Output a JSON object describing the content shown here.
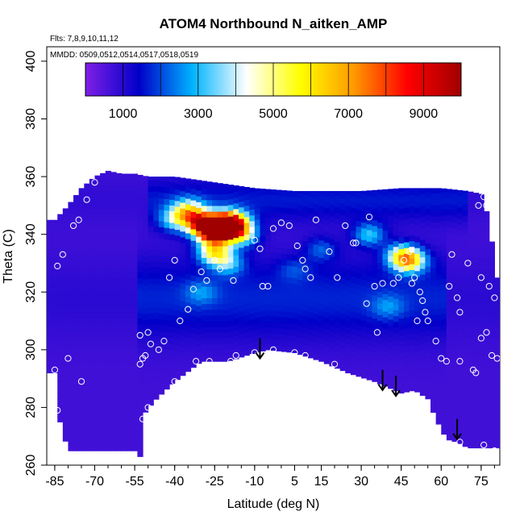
{
  "chart_data": {
    "type": "heatmap",
    "title": "ATOM4 Northbound N_aitken_AMP",
    "notes": [
      "Flts: 7,8,9,10,11,12",
      "MMDD: 0509,0512,0514,0517,0518,0519"
    ],
    "xlabel": "Latitude (deg N)",
    "ylabel": "Theta (C)",
    "xlim": [
      -88,
      82
    ],
    "ylim": [
      260,
      405
    ],
    "x_ticks": [
      -85,
      -70,
      -55,
      -40,
      -25,
      -10,
      5,
      15,
      30,
      45,
      60,
      75
    ],
    "y_ticks": [
      260,
      280,
      300,
      320,
      340,
      360,
      380,
      400
    ],
    "colorbar": {
      "range": [
        0,
        10000
      ],
      "tick_values": [
        1000,
        3000,
        5000,
        7000,
        9000
      ],
      "tick_labels": [
        "1000",
        "3000",
        "5000",
        "7000",
        "9000"
      ],
      "colors": [
        "#7f1fe6",
        "#0000c8",
        "#00b4ff",
        "#ffffff",
        "#ffff00",
        "#ff9900",
        "#ff0000",
        "#a00000"
      ]
    },
    "upper_boundary": [
      [
        -85,
        345
      ],
      [
        -80,
        350
      ],
      [
        -75,
        356
      ],
      [
        -70,
        360
      ],
      [
        -65,
        362
      ],
      [
        -60,
        361
      ],
      [
        -55,
        361
      ],
      [
        -50,
        360
      ],
      [
        -40,
        360
      ],
      [
        -25,
        358
      ],
      [
        -10,
        356
      ],
      [
        5,
        355
      ],
      [
        15,
        355
      ],
      [
        30,
        355
      ],
      [
        45,
        356
      ],
      [
        60,
        356
      ],
      [
        70,
        355
      ],
      [
        75,
        354
      ],
      [
        78,
        345
      ],
      [
        80,
        330
      ],
      [
        82,
        320
      ]
    ],
    "lower_boundary": [
      [
        -85,
        292
      ],
      [
        -83,
        275
      ],
      [
        -80,
        265
      ],
      [
        -70,
        265
      ],
      [
        -55,
        265
      ],
      [
        -53,
        263
      ],
      [
        -53,
        276
      ],
      [
        -48,
        282
      ],
      [
        -40,
        289
      ],
      [
        -30,
        296
      ],
      [
        -20,
        296
      ],
      [
        -10,
        299
      ],
      [
        -5,
        300
      ],
      [
        5,
        299
      ],
      [
        15,
        296
      ],
      [
        25,
        292
      ],
      [
        35,
        289
      ],
      [
        40,
        287
      ],
      [
        45,
        285
      ],
      [
        50,
        286
      ],
      [
        55,
        283
      ],
      [
        58,
        276
      ],
      [
        62,
        269
      ],
      [
        66,
        268
      ],
      [
        70,
        266
      ],
      [
        75,
        266
      ],
      [
        82,
        266
      ]
    ],
    "hotspots": [
      {
        "x": -25,
        "y": 341,
        "value": 9500
      },
      {
        "x": -22,
        "y": 343,
        "value": 8500
      },
      {
        "x": -30,
        "y": 344,
        "value": 7200
      },
      {
        "x": -18,
        "y": 344,
        "value": 7000
      },
      {
        "x": -25,
        "y": 334,
        "value": 5200
      },
      {
        "x": -35,
        "y": 348,
        "value": 4800
      },
      {
        "x": -15,
        "y": 340,
        "value": 4200
      },
      {
        "x": 48,
        "y": 331,
        "value": 5500
      },
      {
        "x": 45,
        "y": 333,
        "value": 3500
      },
      {
        "x": 33,
        "y": 340,
        "value": 3000
      },
      {
        "x": -40,
        "y": 345,
        "value": 3000
      },
      {
        "x": -20,
        "y": 330,
        "value": 2800
      },
      {
        "x": 15,
        "y": 335,
        "value": 2000
      },
      {
        "x": -30,
        "y": 320,
        "value": 1800
      },
      {
        "x": 40,
        "y": 315,
        "value": 1800
      },
      {
        "x": 5,
        "y": 328,
        "value": 1500
      }
    ],
    "observations": [
      [
        -84,
        329
      ],
      [
        -82,
        333
      ],
      [
        -78,
        343
      ],
      [
        -76,
        345
      ],
      [
        -73,
        352
      ],
      [
        -70,
        358
      ],
      [
        -75,
        289
      ],
      [
        -80,
        297
      ],
      [
        -84,
        279
      ],
      [
        -85,
        293
      ],
      [
        -53,
        295
      ],
      [
        -52,
        297
      ],
      [
        -51,
        298
      ],
      [
        -49,
        302
      ],
      [
        -46,
        300
      ],
      [
        -53,
        305
      ],
      [
        -50,
        306
      ],
      [
        -50,
        280
      ],
      [
        -52,
        276
      ],
      [
        -44,
        303
      ],
      [
        -40,
        289
      ],
      [
        -38,
        310
      ],
      [
        -35,
        314
      ],
      [
        -42,
        325
      ],
      [
        -40,
        331
      ],
      [
        -33,
        321
      ],
      [
        -30,
        327
      ],
      [
        -28,
        324
      ],
      [
        -25,
        331
      ],
      [
        -23,
        328
      ],
      [
        -18,
        324
      ],
      [
        -10,
        338
      ],
      [
        -8,
        335
      ],
      [
        -7,
        322
      ],
      [
        -5,
        322
      ],
      [
        -3,
        342
      ],
      [
        0,
        344
      ],
      [
        3,
        343
      ],
      [
        6,
        336
      ],
      [
        8,
        331
      ],
      [
        9,
        328
      ],
      [
        11,
        325
      ],
      [
        13,
        345
      ],
      [
        18,
        334
      ],
      [
        21,
        325
      ],
      [
        24,
        343
      ],
      [
        27,
        337
      ],
      [
        28,
        337
      ],
      [
        33,
        346
      ],
      [
        35,
        322
      ],
      [
        32,
        316
      ],
      [
        36,
        306
      ],
      [
        38,
        323
      ],
      [
        42,
        323
      ],
      [
        44,
        325
      ],
      [
        46,
        331
      ],
      [
        48,
        334
      ],
      [
        49,
        323
      ],
      [
        50,
        325
      ],
      [
        52,
        320
      ],
      [
        53,
        317
      ],
      [
        54,
        313
      ],
      [
        55,
        310
      ],
      [
        51,
        310
      ],
      [
        58,
        303
      ],
      [
        60,
        297
      ],
      [
        62,
        296
      ],
      [
        63,
        322
      ],
      [
        64,
        333
      ],
      [
        66,
        318
      ],
      [
        67,
        313
      ],
      [
        67,
        296
      ],
      [
        70,
        330
      ],
      [
        72,
        293
      ],
      [
        73,
        292
      ],
      [
        75,
        325
      ],
      [
        75,
        304
      ],
      [
        77,
        306
      ],
      [
        78,
        322
      ],
      [
        80,
        318
      ],
      [
        79,
        298
      ],
      [
        81,
        297
      ],
      [
        74,
        350
      ],
      [
        76,
        353
      ],
      [
        77,
        350
      ],
      [
        72,
        357
      ],
      [
        -19,
        296
      ],
      [
        -10,
        299
      ],
      [
        -3,
        300
      ],
      [
        5,
        299
      ],
      [
        9,
        298
      ],
      [
        20,
        295
      ],
      [
        -12,
        296
      ],
      [
        -32,
        296
      ],
      [
        -27,
        296
      ],
      [
        -22,
        294
      ],
      [
        -17,
        298
      ],
      [
        67,
        268
      ],
      [
        76,
        267
      ],
      [
        80,
        265
      ]
    ],
    "arrows": [
      {
        "x": -8,
        "y_top": 304,
        "y_tip": 297
      },
      {
        "x": 38,
        "y_top": 293,
        "y_tip": 286
      },
      {
        "x": 43,
        "y_top": 291,
        "y_tip": 284
      },
      {
        "x": 66,
        "y_top": 276,
        "y_tip": 269
      }
    ]
  }
}
